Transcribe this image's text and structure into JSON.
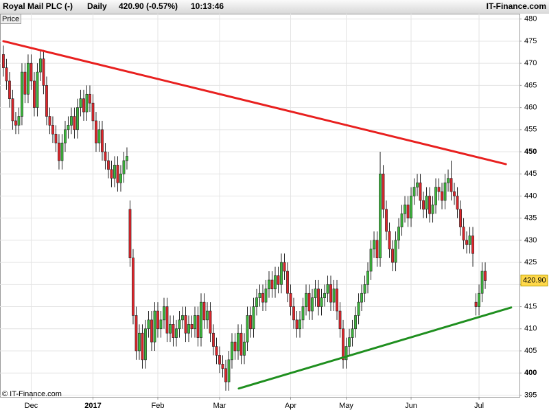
{
  "chart_data": {
    "type": "candlestick",
    "header": {
      "title": "Royal Mail PLC (-)",
      "period": "Daily",
      "quote": "420.90 (-0.57%)",
      "time": "10:13:46",
      "source": "IT-Finance.com"
    },
    "axis_label": "Price",
    "footer": "© IT-Finance.com",
    "last_price": {
      "value": 420.9,
      "label": "420.90"
    },
    "up_color": "#3cb83c",
    "down_color": "#e0242a",
    "grid": true,
    "ylim": [
      394.6,
      481.2
    ],
    "yticks": [
      395,
      400,
      405,
      410,
      415,
      420,
      425,
      430,
      435,
      440,
      445,
      450,
      455,
      460,
      465,
      470,
      475,
      480
    ],
    "xlim": [
      -1.1,
      167.1
    ],
    "xticks": [
      {
        "value": 9,
        "label": "Dec"
      },
      {
        "value": 29,
        "label": "2017"
      },
      {
        "value": 50,
        "label": "Feb"
      },
      {
        "value": 70,
        "label": "Mar"
      },
      {
        "value": 93,
        "label": "Apr"
      },
      {
        "value": 111,
        "label": "May"
      },
      {
        "value": 132,
        "label": "Jun"
      },
      {
        "value": 154,
        "label": "Jul"
      }
    ],
    "open": [
      472,
      469,
      466,
      462,
      457,
      456,
      458,
      468,
      463,
      470,
      466,
      460,
      468,
      471,
      465,
      458,
      456,
      454,
      452,
      448,
      452,
      455,
      456,
      458,
      455,
      460,
      462,
      459,
      463,
      461,
      457,
      452,
      455,
      450,
      448,
      446,
      444,
      447,
      443,
      445,
      448,
      437,
      426,
      413,
      405,
      409,
      403,
      410,
      412,
      407,
      414,
      410,
      412,
      415,
      409,
      411,
      408,
      410,
      412,
      413,
      409,
      411,
      410,
      413,
      408,
      416,
      412,
      414,
      409,
      406,
      404,
      402,
      401,
      398,
      403,
      407,
      405,
      409,
      404,
      407,
      413,
      410,
      415,
      417,
      418,
      416,
      419,
      421,
      419,
      422,
      420,
      425,
      423,
      418,
      415,
      412,
      410,
      412,
      415,
      418,
      414,
      417,
      419,
      415,
      417,
      418,
      420,
      416,
      419,
      414,
      410,
      403,
      406,
      408,
      410,
      413,
      416,
      418,
      420,
      423,
      428,
      430,
      426,
      445,
      437,
      432,
      428,
      425,
      430,
      433,
      436,
      438,
      435,
      440,
      442,
      443,
      439,
      437,
      440,
      436,
      438,
      442,
      441,
      439,
      443,
      444,
      441,
      440,
      437,
      433,
      430,
      429,
      431,
      416,
      415,
      418,
      423
    ],
    "high": [
      474,
      471,
      468,
      464,
      459,
      460,
      470,
      470,
      472,
      472,
      468,
      470,
      473,
      473,
      467,
      460,
      458,
      456,
      454,
      454,
      457,
      458,
      460,
      460,
      462,
      464,
      464,
      465,
      465,
      463,
      459,
      457,
      457,
      452,
      450,
      448,
      449,
      449,
      447,
      450,
      451,
      439,
      428,
      415,
      411,
      411,
      412,
      414,
      414,
      416,
      416,
      414,
      417,
      417,
      413,
      413,
      412,
      414,
      415,
      415,
      413,
      413,
      415,
      415,
      418,
      418,
      416,
      416,
      411,
      408,
      406,
      404,
      403,
      405,
      409,
      409,
      411,
      411,
      409,
      415,
      415,
      417,
      419,
      420,
      420,
      421,
      423,
      423,
      424,
      424,
      427,
      427,
      425,
      420,
      417,
      414,
      414,
      417,
      420,
      420,
      419,
      421,
      421,
      419,
      420,
      422,
      422,
      421,
      421,
      416,
      412,
      408,
      410,
      412,
      415,
      418,
      420,
      422,
      425,
      430,
      432,
      432,
      450,
      447,
      439,
      434,
      430,
      432,
      435,
      438,
      440,
      440,
      442,
      444,
      445,
      445,
      441,
      442,
      442,
      440,
      444,
      444,
      443,
      445,
      446,
      448,
      443,
      442,
      439,
      435,
      432,
      433,
      433,
      418,
      420,
      425,
      425
    ],
    "low": [
      467,
      464,
      460,
      455,
      454,
      454,
      456,
      461,
      461,
      464,
      458,
      458,
      466,
      463,
      456,
      454,
      452,
      450,
      446,
      446,
      450,
      453,
      454,
      453,
      453,
      458,
      457,
      457,
      459,
      455,
      450,
      450,
      448,
      446,
      444,
      442,
      442,
      441,
      441,
      443,
      446,
      424,
      411,
      403,
      403,
      401,
      401,
      408,
      405,
      405,
      408,
      408,
      410,
      407,
      407,
      406,
      406,
      408,
      410,
      407,
      407,
      408,
      408,
      406,
      406,
      410,
      410,
      407,
      404,
      402,
      400,
      399,
      396,
      396,
      401,
      403,
      403,
      402,
      402,
      405,
      408,
      408,
      413,
      415,
      414,
      414,
      417,
      417,
      417,
      418,
      418,
      421,
      416,
      413,
      410,
      408,
      408,
      410,
      413,
      412,
      412,
      415,
      413,
      413,
      415,
      416,
      414,
      414,
      412,
      408,
      401,
      401,
      404,
      406,
      408,
      411,
      414,
      416,
      418,
      421,
      426,
      424,
      424,
      435,
      430,
      426,
      423,
      423,
      428,
      431,
      434,
      433,
      433,
      438,
      440,
      437,
      435,
      435,
      434,
      434,
      436,
      439,
      437,
      437,
      441,
      439,
      438,
      435,
      431,
      428,
      427,
      427,
      424,
      413,
      413,
      416,
      419
    ],
    "close": [
      469,
      466,
      462,
      457,
      456,
      458,
      468,
      463,
      470,
      466,
      460,
      468,
      471,
      465,
      458,
      456,
      454,
      452,
      448,
      452,
      455,
      456,
      458,
      455,
      460,
      462,
      459,
      463,
      461,
      457,
      452,
      455,
      450,
      448,
      446,
      444,
      447,
      443,
      445,
      448,
      449,
      426,
      413,
      405,
      409,
      403,
      410,
      412,
      407,
      414,
      410,
      412,
      415,
      409,
      411,
      408,
      410,
      412,
      413,
      409,
      411,
      410,
      413,
      408,
      416,
      412,
      414,
      409,
      406,
      404,
      402,
      401,
      398,
      403,
      407,
      405,
      409,
      404,
      407,
      413,
      410,
      415,
      417,
      418,
      416,
      419,
      421,
      419,
      422,
      420,
      425,
      423,
      418,
      415,
      412,
      410,
      412,
      415,
      418,
      414,
      417,
      419,
      415,
      417,
      418,
      420,
      416,
      419,
      414,
      410,
      403,
      406,
      408,
      410,
      413,
      416,
      418,
      420,
      423,
      428,
      430,
      426,
      445,
      437,
      432,
      428,
      425,
      430,
      433,
      436,
      438,
      435,
      440,
      442,
      443,
      439,
      437,
      440,
      436,
      438,
      442,
      441,
      439,
      443,
      444,
      441,
      440,
      437,
      433,
      430,
      429,
      431,
      427,
      415,
      418,
      423,
      420.9
    ],
    "trendlines": [
      {
        "color": "#e8201f",
        "start": [
          0,
          475
        ],
        "end": [
          162.7,
          447.2
        ]
      },
      {
        "color": "#1f8f1f",
        "start": [
          76.2,
          396.5
        ],
        "end": [
          164.4,
          414.8
        ]
      }
    ]
  }
}
